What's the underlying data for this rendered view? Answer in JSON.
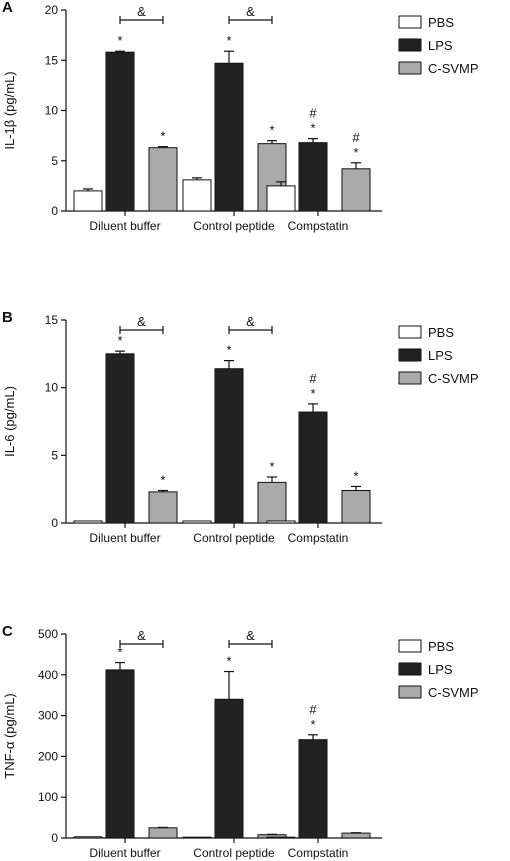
{
  "chart_data": [
    {
      "type": "bar",
      "panel": "A",
      "ylabel": "IL-1β (pg/mL)",
      "ylim": [
        0,
        20
      ],
      "yticks": [
        0,
        5,
        10,
        15,
        20
      ],
      "categories": [
        "Diluent buffer",
        "Control peptide",
        "Compstatin"
      ],
      "series": [
        {
          "name": "PBS",
          "color": "#ffffff",
          "values": [
            2.0,
            3.1,
            2.5
          ],
          "errors": [
            0.2,
            0.2,
            0.4
          ]
        },
        {
          "name": "LPS",
          "color": "#222222",
          "values": [
            15.8,
            14.7,
            6.8
          ],
          "errors": [
            0.1,
            1.2,
            0.4
          ]
        },
        {
          "name": "C-SVMP",
          "color": "#aaaaaa",
          "values": [
            6.3,
            6.7,
            4.2
          ],
          "errors": [
            0.1,
            0.3,
            0.6
          ]
        }
      ],
      "bar_marks": [
        [
          "",
          "*",
          "*"
        ],
        [
          "",
          "*",
          "*"
        ],
        [
          "",
          "#\n*",
          "#\n*"
        ]
      ],
      "amp_label": "&",
      "amp_categories": [
        0,
        1
      ]
    },
    {
      "type": "bar",
      "panel": "B",
      "ylabel": "IL-6 (pg/mL)",
      "ylim": [
        0,
        15
      ],
      "yticks": [
        0,
        5,
        10,
        15
      ],
      "categories": [
        "Diluent buffer",
        "Control peptide",
        "Compstatin"
      ],
      "series": [
        {
          "name": "PBS",
          "color": "#ffffff",
          "values": [
            0.15,
            0.15,
            0.15
          ],
          "errors": [
            0,
            0,
            0
          ]
        },
        {
          "name": "LPS",
          "color": "#222222",
          "values": [
            12.5,
            11.4,
            8.2
          ],
          "errors": [
            0.2,
            0.6,
            0.6
          ]
        },
        {
          "name": "C-SVMP",
          "color": "#aaaaaa",
          "values": [
            2.3,
            3.0,
            2.4
          ],
          "errors": [
            0.1,
            0.4,
            0.3
          ]
        }
      ],
      "bar_marks": [
        [
          "",
          "*",
          "*"
        ],
        [
          "",
          "*",
          "*"
        ],
        [
          "",
          "#\n*",
          "*"
        ]
      ],
      "amp_label": "&",
      "amp_categories": [
        0,
        1
      ]
    },
    {
      "type": "bar",
      "panel": "C",
      "ylabel": "TNF-α (pg/mL)",
      "ylim": [
        0,
        500
      ],
      "yticks": [
        0,
        100,
        200,
        300,
        400,
        500
      ],
      "categories": [
        "Diluent buffer",
        "Control peptide",
        "Compstatin"
      ],
      "series": [
        {
          "name": "PBS",
          "color": "#ffffff",
          "values": [
            3,
            2,
            2
          ],
          "errors": [
            0,
            0,
            0
          ]
        },
        {
          "name": "LPS",
          "color": "#222222",
          "values": [
            412,
            340,
            241
          ],
          "errors": [
            18,
            68,
            12
          ]
        },
        {
          "name": "C-SVMP",
          "color": "#aaaaaa",
          "values": [
            25,
            8,
            12
          ],
          "errors": [
            1,
            1,
            1
          ]
        }
      ],
      "bar_marks": [
        [
          "",
          "*",
          ""
        ],
        [
          "",
          "*",
          ""
        ],
        [
          "",
          "#\n*",
          ""
        ]
      ],
      "amp_label": "&",
      "amp_categories": [
        0,
        1
      ]
    }
  ]
}
